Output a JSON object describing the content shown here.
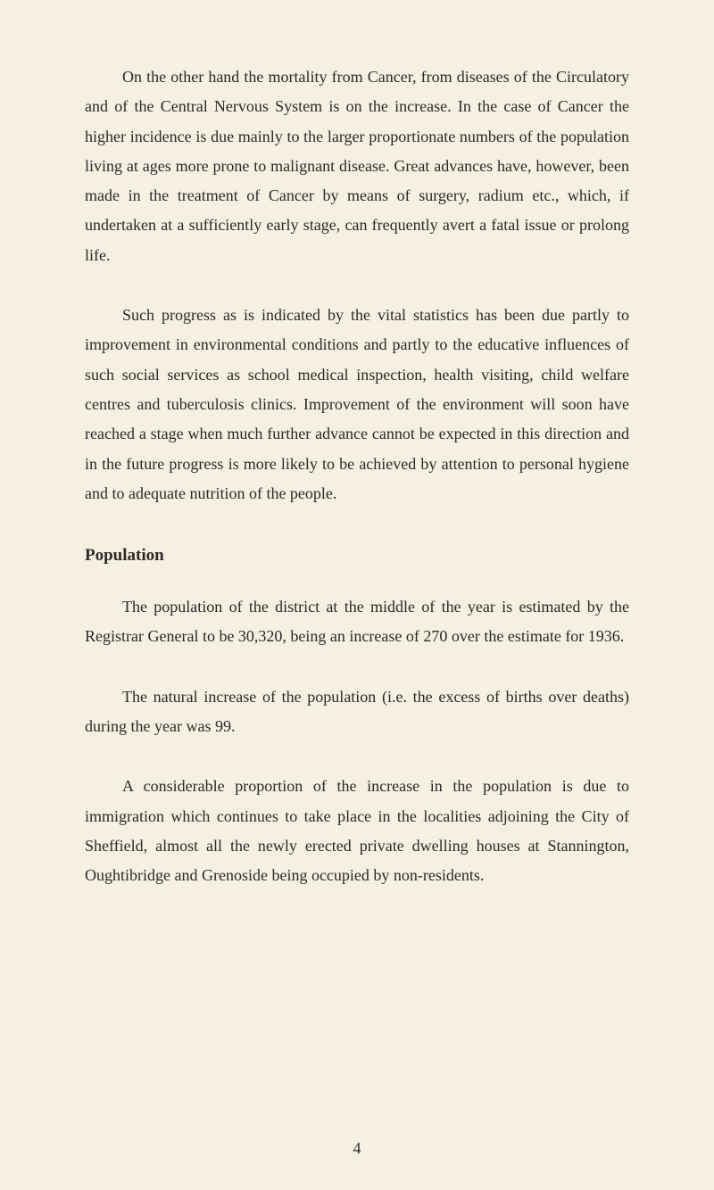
{
  "page": {
    "background_color": "#f5f0e1",
    "text_color": "#2a2a2a",
    "font_family": "Georgia, 'Times New Roman', serif",
    "body_font_size": 18,
    "heading_font_size": 19,
    "line_height": 1.85,
    "text_indent": 42
  },
  "paragraphs": {
    "p1": "On the other hand the mortality from Cancer, from dis­eases of the Circulatory and of the Central Nervous System is on the increase. In the case of Cancer the higher incidence is due mainly to the larger proportionate numbers of the popu­lation living at ages more prone to malignant disease. Great advances have, however, been made in the treatment of Cancer by means of surgery, radium etc., which, if undertaken at a sufficiently early stage, can frequently avert a fatal issue or prolong life.",
    "p2": "Such progress as is indicated by the vital statistics has been due partly to improvement in environmental conditions and partly to the educative influences of such social services as school medical inspection, health visiting, child welfare centres and tuberculosis clinics. Improvement of the environ­ment will soon have reached a stage when much further ad­vance cannot be expected in this direction and in the future progress is more likely to be achieved by attention to personal hygiene and to adequate nutrition of the people.",
    "p3": "The population of the district at the middle of the year is estimated by the Registrar General to be 30,320, being an increase of 270 over the estimate for 1936.",
    "p4": "The natural increase of the population (i.e. the excess of births over deaths) during the year was 99.",
    "p5": "A considerable proportion of the increase in the popula­tion is due to immigration which continues to take place in the localities adjoining the City of Sheffield, almost all the newly erected private dwelling houses at Stannington, Oughtibridge and Grenoside being occupied by non-residents."
  },
  "heading": {
    "population": "Population"
  },
  "page_number": "4"
}
